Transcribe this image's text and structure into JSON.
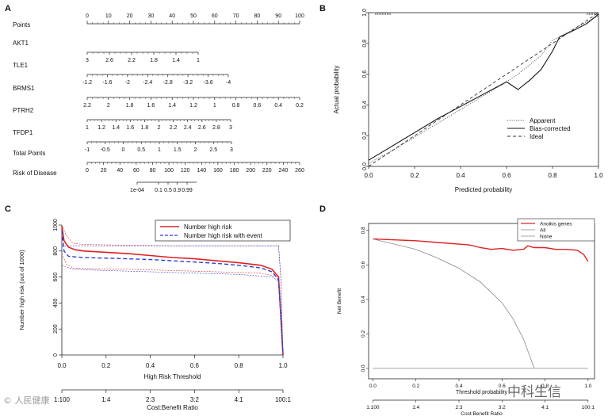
{
  "panels": {
    "a": "A",
    "b": "B",
    "c": "C",
    "d": "D"
  },
  "nomogram": {
    "rows": [
      {
        "label": "Points",
        "ticks": [
          "0",
          "10",
          "20",
          "30",
          "40",
          "50",
          "60",
          "70",
          "80",
          "90",
          "100"
        ]
      },
      {
        "label": "AKT1",
        "ticks": [
          "3",
          "2.6",
          "2.2",
          "1.8",
          "1.4",
          "1"
        ]
      },
      {
        "label": "TLE1",
        "ticks": [
          "-1.2",
          "-1.6",
          "-2",
          "-2.4",
          "-2.8",
          "-3.2",
          "-3.6",
          "-4"
        ]
      },
      {
        "label": "BRMS1",
        "ticks": [
          "2.2",
          "2",
          "1.8",
          "1.6",
          "1.4",
          "1.2",
          "1",
          "0.8",
          "0.6",
          "0.4",
          "0.2"
        ]
      },
      {
        "label": "PTRH2",
        "ticks": [
          "1",
          "1.2",
          "1.4",
          "1.6",
          "1.8",
          "2",
          "2.2",
          "2.4",
          "2.6",
          "2.8",
          "3"
        ]
      },
      {
        "label": "TFDP1",
        "ticks": [
          "-1",
          "-0.5",
          "0",
          "0.5",
          "1",
          "1.5",
          "2",
          "2.5",
          "3"
        ]
      },
      {
        "label": "Total Points",
        "ticks": [
          "0",
          "20",
          "40",
          "60",
          "80",
          "100",
          "120",
          "140",
          "160",
          "180",
          "200",
          "220",
          "240",
          "260"
        ]
      },
      {
        "label": "Risk of Disease",
        "ticks": [
          "1e-04",
          "0.1",
          "0.5",
          "0.9",
          "0.99"
        ]
      }
    ]
  },
  "chart_data": [
    {
      "panel": "B",
      "type": "line",
      "xlabel": "Predicted probability",
      "ylabel": "Actual probability",
      "xlim": [
        0,
        1
      ],
      "ylim": [
        0,
        1
      ],
      "xticks": [
        "0.0",
        "0.2",
        "0.4",
        "0.6",
        "0.8",
        "1.0"
      ],
      "yticks": [
        "0.0",
        "0.2",
        "0.4",
        "0.6",
        "0.8",
        "1.0"
      ],
      "legend": [
        "Apparent",
        "Bias-corrected",
        "Ideal"
      ],
      "series": [
        {
          "name": "Apparent",
          "style": "dotted",
          "x": [
            0,
            0.1,
            0.2,
            0.3,
            0.4,
            0.5,
            0.6,
            0.65,
            0.7,
            0.75,
            0.8,
            0.9,
            1.0
          ],
          "y": [
            0.02,
            0.1,
            0.19,
            0.28,
            0.37,
            0.46,
            0.55,
            0.6,
            0.66,
            0.72,
            0.82,
            0.9,
            0.98
          ]
        },
        {
          "name": "Bias-corrected",
          "style": "solid",
          "x": [
            0,
            0.1,
            0.2,
            0.3,
            0.4,
            0.5,
            0.6,
            0.65,
            0.7,
            0.75,
            0.8,
            0.83,
            0.9,
            0.95,
            1.0
          ],
          "y": [
            0.04,
            0.13,
            0.22,
            0.31,
            0.39,
            0.47,
            0.55,
            0.5,
            0.56,
            0.63,
            0.75,
            0.84,
            0.89,
            0.93,
            0.99
          ]
        },
        {
          "name": "Ideal",
          "style": "dashed",
          "x": [
            0,
            1
          ],
          "y": [
            0,
            1
          ]
        }
      ]
    },
    {
      "panel": "C",
      "type": "line",
      "xlabel": "High Risk Threshold",
      "ylabel": "Number high risk (out of 1000)",
      "xlim": [
        0,
        1
      ],
      "ylim": [
        0,
        1000
      ],
      "xticks": [
        "0.0",
        "0.2",
        "0.4",
        "0.6",
        "0.8",
        "1.0"
      ],
      "yticks": [
        "0",
        "200",
        "400",
        "600",
        "800",
        "1000"
      ],
      "x2label": "Cost:Benefit Ratio",
      "x2ticks": [
        "1:100",
        "1:4",
        "2:3",
        "3:2",
        "4:1",
        "100:1"
      ],
      "legend": [
        "Number high risk",
        "Number high risk with event"
      ],
      "series": [
        {
          "name": "Number high risk",
          "color": "#e02020",
          "style": "solid",
          "x": [
            0,
            0.01,
            0.03,
            0.06,
            0.1,
            0.2,
            0.3,
            0.4,
            0.5,
            0.6,
            0.7,
            0.8,
            0.9,
            0.95,
            0.98,
            0.99,
            1.0
          ],
          "y": [
            990,
            880,
            830,
            810,
            800,
            790,
            780,
            765,
            750,
            740,
            725,
            710,
            690,
            660,
            600,
            300,
            0
          ]
        },
        {
          "name": "Number high risk CI upper",
          "color": "#e02020",
          "style": "dashed-thin",
          "x": [
            0,
            0.02,
            0.05,
            0.1,
            0.3,
            0.5,
            0.7,
            0.9,
            0.98,
            0.99,
            1.0
          ],
          "y": [
            1000,
            920,
            860,
            850,
            845,
            840,
            840,
            840,
            840,
            600,
            0
          ]
        },
        {
          "name": "Number high risk CI lower",
          "color": "#e02020",
          "style": "dashed-thin",
          "x": [
            0,
            0.02,
            0.05,
            0.1,
            0.3,
            0.5,
            0.7,
            0.9,
            0.98,
            0.99,
            1.0
          ],
          "y": [
            780,
            700,
            670,
            665,
            660,
            650,
            640,
            630,
            600,
            300,
            0
          ]
        },
        {
          "name": "Number high risk with event",
          "color": "#2d3fd0",
          "style": "dashed",
          "x": [
            0,
            0.01,
            0.03,
            0.06,
            0.1,
            0.2,
            0.3,
            0.4,
            0.5,
            0.6,
            0.7,
            0.8,
            0.9,
            0.95,
            0.98,
            0.99,
            1.0
          ],
          "y": [
            960,
            800,
            760,
            755,
            750,
            745,
            740,
            735,
            725,
            715,
            705,
            690,
            670,
            640,
            580,
            300,
            0
          ]
        },
        {
          "name": "Number high risk with event CI upper",
          "color": "#2d3fd0",
          "style": "dashed-thin",
          "x": [
            0,
            0.05,
            0.2,
            0.4,
            0.6,
            0.8,
            0.98,
            0.99,
            1.0
          ],
          "y": [
            840,
            840,
            840,
            840,
            840,
            840,
            840,
            600,
            0
          ]
        },
        {
          "name": "Number high risk with event CI lower",
          "color": "#2d3fd0",
          "style": "dashed-thin",
          "x": [
            0,
            0.05,
            0.2,
            0.4,
            0.6,
            0.8,
            0.95,
            0.98,
            0.99,
            1.0
          ],
          "y": [
            690,
            660,
            650,
            640,
            630,
            620,
            600,
            570,
            300,
            0
          ]
        }
      ]
    },
    {
      "panel": "D",
      "type": "line",
      "xlabel": "Threshold probability",
      "ylabel": "Net Benefit",
      "xlim": [
        0,
        1
      ],
      "ylim": [
        0,
        0.8
      ],
      "xticks": [
        "0.0",
        "0.2",
        "0.4",
        "0.6",
        "0.8",
        "1.0"
      ],
      "yticks": [
        "0.0",
        "0.2",
        "0.4",
        "0.6",
        "0.8"
      ],
      "x2label": "Cost:Benefit Ratio",
      "x2ticks": [
        "1:100",
        "1:4",
        "2:3",
        "3:2",
        "4:1",
        "100:1"
      ],
      "legend": [
        "Anoikis genes",
        "All",
        "None"
      ],
      "series": [
        {
          "name": "Anoikis genes",
          "color": "#e02020",
          "x": [
            0,
            0.1,
            0.2,
            0.3,
            0.4,
            0.45,
            0.5,
            0.55,
            0.6,
            0.65,
            0.7,
            0.72,
            0.75,
            0.8,
            0.85,
            0.9,
            0.95,
            0.98,
            1.0
          ],
          "y": [
            0.75,
            0.745,
            0.74,
            0.73,
            0.72,
            0.715,
            0.7,
            0.69,
            0.695,
            0.685,
            0.69,
            0.71,
            0.7,
            0.7,
            0.69,
            0.69,
            0.685,
            0.66,
            0.62
          ]
        },
        {
          "name": "All",
          "color": "#888888",
          "x": [
            0,
            0.1,
            0.2,
            0.3,
            0.4,
            0.5,
            0.6,
            0.65,
            0.7,
            0.75
          ],
          "y": [
            0.75,
            0.72,
            0.69,
            0.64,
            0.58,
            0.5,
            0.38,
            0.29,
            0.17,
            0
          ]
        },
        {
          "name": "None",
          "color": "#888888",
          "x": [
            0,
            1
          ],
          "y": [
            0,
            0
          ]
        }
      ]
    }
  ],
  "watermarks": {
    "left": "© 人民健康",
    "right": "中科生信"
  }
}
